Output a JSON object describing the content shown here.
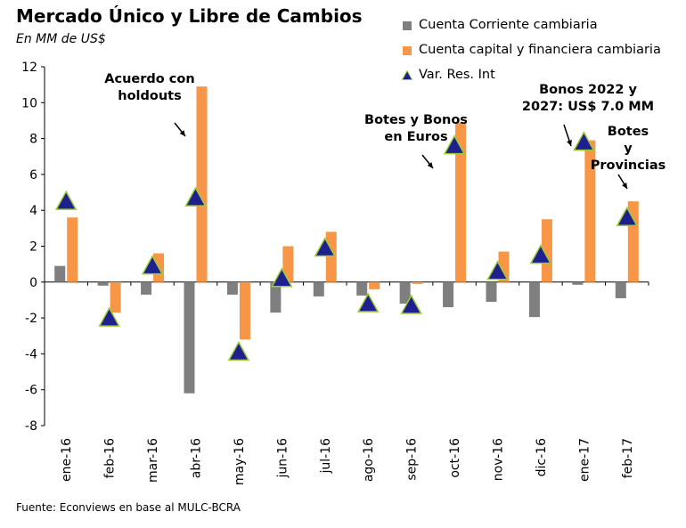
{
  "chart_data": {
    "type": "bar",
    "title": "Mercado Único y Libre de Cambios",
    "subtitle": "En MM de US$",
    "source": "Fuente: Econviews en base al MULC-BCRA",
    "categories": [
      "ene-16",
      "feb-16",
      "mar-16",
      "abr-16",
      "may-16",
      "jun-16",
      "jul-16",
      "ago-16",
      "sep-16",
      "oct-16",
      "nov-16",
      "dic-16",
      "ene-17",
      "feb-17"
    ],
    "ylim": [
      -8,
      12
    ],
    "yticks": [
      -8,
      -6,
      -4,
      -2,
      0,
      2,
      4,
      6,
      8,
      10,
      12
    ],
    "grid": false,
    "legend_position": "top-right",
    "series": [
      {
        "name": "Cuenta Corriente cambiaria",
        "kind": "bar",
        "color": "#7f7f7f",
        "values": [
          0.9,
          -0.2,
          -0.7,
          -6.2,
          -0.7,
          -1.7,
          -0.8,
          -0.75,
          -1.2,
          -1.4,
          -1.1,
          -1.95,
          -0.15,
          -0.9
        ]
      },
      {
        "name": "Cuenta capital y financiera cambiaria",
        "kind": "bar",
        "color": "#f79646",
        "values": [
          3.6,
          -1.7,
          1.6,
          10.9,
          -3.2,
          2.0,
          2.8,
          -0.4,
          -0.1,
          8.9,
          1.7,
          3.5,
          7.9,
          4.5
        ]
      },
      {
        "name": "Var. Res. Int",
        "kind": "marker",
        "color": "#1f1f8f",
        "values": [
          4.5,
          -2.0,
          0.9,
          4.7,
          -3.9,
          0.2,
          1.9,
          -1.2,
          -1.3,
          7.6,
          0.6,
          1.5,
          7.8,
          3.6
        ]
      }
    ],
    "annotations": [
      {
        "lines": [
          "Acuerdo con",
          "holdouts"
        ],
        "category": "abr-16"
      },
      {
        "lines": [
          "Botes y Bonos",
          "en Euros"
        ],
        "category": "oct-16"
      },
      {
        "lines": [
          "Bonos 2022 y",
          "2027: US$ 7.0 MM"
        ],
        "category": "ene-17"
      },
      {
        "lines": [
          "Botes",
          "y",
          "Provincias"
        ],
        "category": "feb-17"
      }
    ]
  }
}
